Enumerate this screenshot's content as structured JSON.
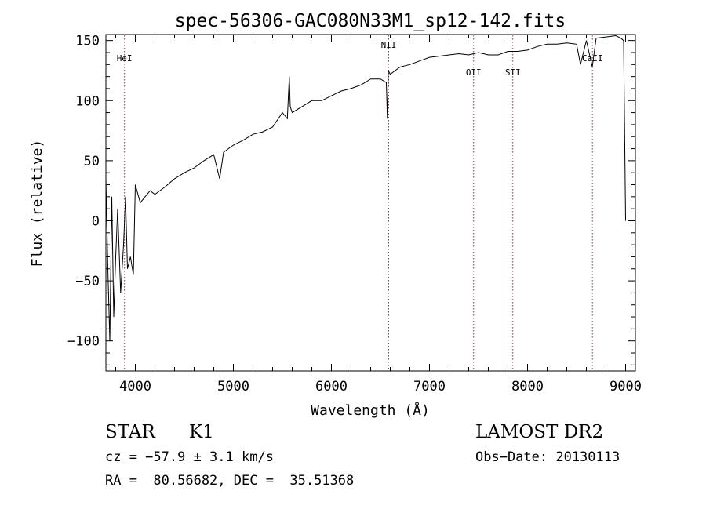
{
  "chart_data": {
    "type": "line",
    "title": "spec-56306-GAC080N33M1_sp12-142.fits",
    "xlabel": "Wavelength (Å)",
    "ylabel": "Flux (relative)",
    "xlim": [
      3700,
      9100
    ],
    "ylim": [
      -125,
      155
    ],
    "xticks": [
      4000,
      5000,
      6000,
      7000,
      8000,
      9000
    ],
    "yticks": [
      -100,
      -50,
      0,
      50,
      100,
      150
    ],
    "grid": false,
    "series": [
      {
        "x": [
          3700,
          3720,
          3740,
          3760,
          3780,
          3800,
          3820,
          3850,
          3880,
          3900,
          3920,
          3950,
          3980,
          4000,
          4050,
          4100,
          4150,
          4200,
          4300,
          4400,
          4500,
          4600,
          4700,
          4800,
          4860,
          4900,
          5000,
          5100,
          5200,
          5300,
          5400,
          5500,
          5550,
          5570,
          5580,
          5600,
          5700,
          5800,
          5900,
          6000,
          6100,
          6200,
          6300,
          6400,
          6500,
          6560,
          6570,
          6580,
          6600,
          6700,
          6800,
          6900,
          7000,
          7100,
          7200,
          7300,
          7400,
          7500,
          7600,
          7700,
          7800,
          7900,
          8000,
          8100,
          8200,
          8300,
          8400,
          8500,
          8540,
          8600,
          8660,
          8700,
          8800,
          8900,
          8950,
          8980,
          9000
        ],
        "y": [
          35,
          -40,
          -100,
          20,
          -80,
          -30,
          10,
          -60,
          -20,
          20,
          -40,
          -30,
          -45,
          30,
          15,
          20,
          25,
          22,
          28,
          35,
          40,
          44,
          50,
          55,
          35,
          57,
          63,
          67,
          72,
          74,
          78,
          90,
          85,
          120,
          95,
          90,
          95,
          100,
          100,
          104,
          108,
          110,
          113,
          118,
          118,
          115,
          85,
          125,
          122,
          128,
          130,
          133,
          136,
          137,
          138,
          139,
          138,
          140,
          138,
          138,
          141,
          141,
          142,
          145,
          147,
          147,
          148,
          147,
          130,
          150,
          128,
          152,
          153,
          154,
          152,
          150,
          0
        ]
      }
    ],
    "lines": [
      {
        "label": "HeI",
        "x": 3889
      },
      {
        "label": "NII",
        "x": 6584
      },
      {
        "label": "OII",
        "x": 7450
      },
      {
        "label": "SII",
        "x": 7850
      },
      {
        "label": "CaII",
        "x": 8662
      }
    ]
  },
  "info": {
    "class": "STAR",
    "subclass": "K1",
    "survey": "LAMOST DR2",
    "cz": "cz = −57.9 ± 3.1 km/s",
    "obs_date": "Obs−Date: 20130113",
    "coords": "RA =  80.56682, DEC =  35.51368"
  }
}
